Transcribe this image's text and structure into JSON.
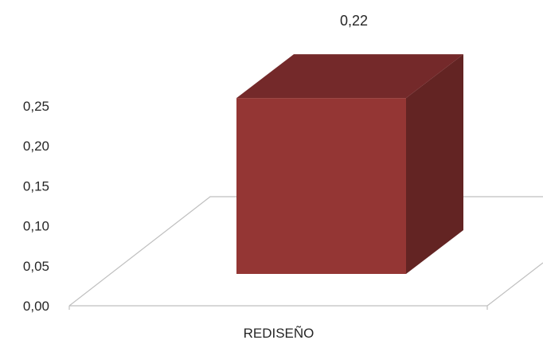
{
  "chart_data": {
    "type": "bar",
    "categories": [
      "REDISEÑO"
    ],
    "values": [
      0.22
    ],
    "data_labels": [
      "0,22"
    ],
    "y_tick_labels": [
      "0,00",
      "0,05",
      "0,10",
      "0,15",
      "0,20",
      "0,25"
    ],
    "y_ticks": [
      0,
      0.05,
      0.1,
      0.15,
      0.2,
      0.25
    ],
    "ylim": [
      0,
      0.25
    ],
    "title": "",
    "xlabel": "",
    "ylabel": "",
    "grid": false,
    "legend": "none",
    "style": "3d-column",
    "colors": {
      "bar_front": "#943634",
      "bar_top": "#74292a",
      "bar_side": "#632423",
      "floor_line": "#bfbfbf",
      "text": "#262626"
    }
  }
}
